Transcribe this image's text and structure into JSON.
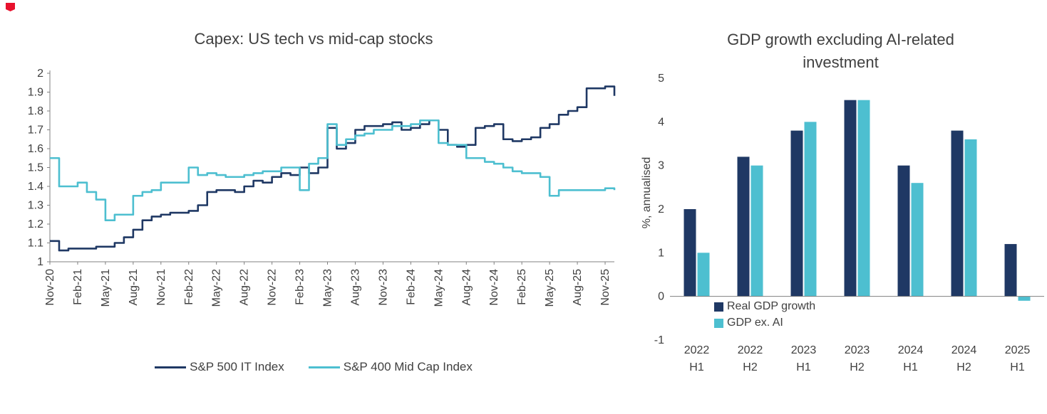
{
  "page": {
    "background": "#ffffff"
  },
  "decor": {
    "corner_mark_color": "#e8112d"
  },
  "colors": {
    "navy": "#1f3864",
    "cyan": "#4dbfd0",
    "axis": "#808080",
    "text": "#404040"
  },
  "chart_data": [
    {
      "type": "line",
      "title": "Capex: US tech vs mid-cap stocks",
      "ylim": [
        1,
        2
      ],
      "yticks": [
        1,
        1.1,
        1.2,
        1.3,
        1.4,
        1.5,
        1.6,
        1.7,
        1.8,
        1.9,
        2
      ],
      "grid": false,
      "legend_position": "bottom",
      "x_freq": "monthly",
      "x_tick_every": 3,
      "x_tick_labels": [
        "Nov-20",
        "Feb-21",
        "May-21",
        "Aug-21",
        "Nov-21",
        "Feb-22",
        "May-22",
        "Aug-22",
        "Nov-22",
        "Feb-23",
        "May-23",
        "Aug-23",
        "Nov-23",
        "Feb-24",
        "May-24",
        "Aug-24",
        "Nov-24",
        "Feb-25",
        "May-25",
        "Aug-25",
        "Nov-25"
      ],
      "series": [
        {
          "name": "S&P 500 IT Index",
          "color": "#1f3864",
          "values": [
            1.11,
            1.06,
            1.07,
            1.07,
            1.07,
            1.08,
            1.08,
            1.1,
            1.13,
            1.17,
            1.22,
            1.24,
            1.25,
            1.26,
            1.26,
            1.27,
            1.3,
            1.37,
            1.38,
            1.38,
            1.37,
            1.4,
            1.43,
            1.42,
            1.45,
            1.47,
            1.46,
            1.5,
            1.47,
            1.5,
            1.71,
            1.6,
            1.63,
            1.7,
            1.72,
            1.72,
            1.73,
            1.74,
            1.7,
            1.71,
            1.73,
            1.75,
            1.7,
            1.62,
            1.61,
            1.62,
            1.71,
            1.72,
            1.73,
            1.65,
            1.64,
            1.65,
            1.66,
            1.71,
            1.73,
            1.78,
            1.8,
            1.82,
            1.92,
            1.92,
            1.93,
            1.88
          ]
        },
        {
          "name": "S&P 400 Mid Cap Index",
          "color": "#4dbfd0",
          "values": [
            1.55,
            1.4,
            1.4,
            1.42,
            1.37,
            1.33,
            1.22,
            1.25,
            1.25,
            1.35,
            1.37,
            1.38,
            1.42,
            1.42,
            1.42,
            1.5,
            1.46,
            1.47,
            1.46,
            1.45,
            1.45,
            1.46,
            1.47,
            1.48,
            1.48,
            1.5,
            1.5,
            1.38,
            1.52,
            1.55,
            1.73,
            1.62,
            1.65,
            1.67,
            1.68,
            1.7,
            1.7,
            1.72,
            1.72,
            1.73,
            1.75,
            1.75,
            1.63,
            1.62,
            1.62,
            1.55,
            1.55,
            1.53,
            1.52,
            1.5,
            1.48,
            1.47,
            1.47,
            1.45,
            1.35,
            1.38,
            1.38,
            1.38,
            1.38,
            1.38,
            1.39,
            1.38
          ]
        }
      ]
    },
    {
      "type": "bar",
      "title": "GDP growth excluding AI-related investment",
      "ylabel": "%, annualised",
      "ylim": [
        -1,
        5
      ],
      "yticks": [
        -1,
        0,
        1,
        2,
        3,
        4,
        5
      ],
      "grid": false,
      "legend_position": "inside-bottom-left",
      "categories": [
        "2022 H1",
        "2022 H2",
        "2023 H1",
        "2023 H2",
        "2024 H1",
        "2024 H2",
        "2025 H1"
      ],
      "series": [
        {
          "name": "Real GDP growth",
          "color": "#1f3864",
          "values": [
            2.0,
            3.2,
            3.8,
            4.5,
            3.0,
            3.8,
            1.2
          ]
        },
        {
          "name": "GDP ex. AI",
          "color": "#4dbfd0",
          "values": [
            1.0,
            3.0,
            4.0,
            4.5,
            2.6,
            3.6,
            -0.1
          ]
        }
      ]
    }
  ]
}
